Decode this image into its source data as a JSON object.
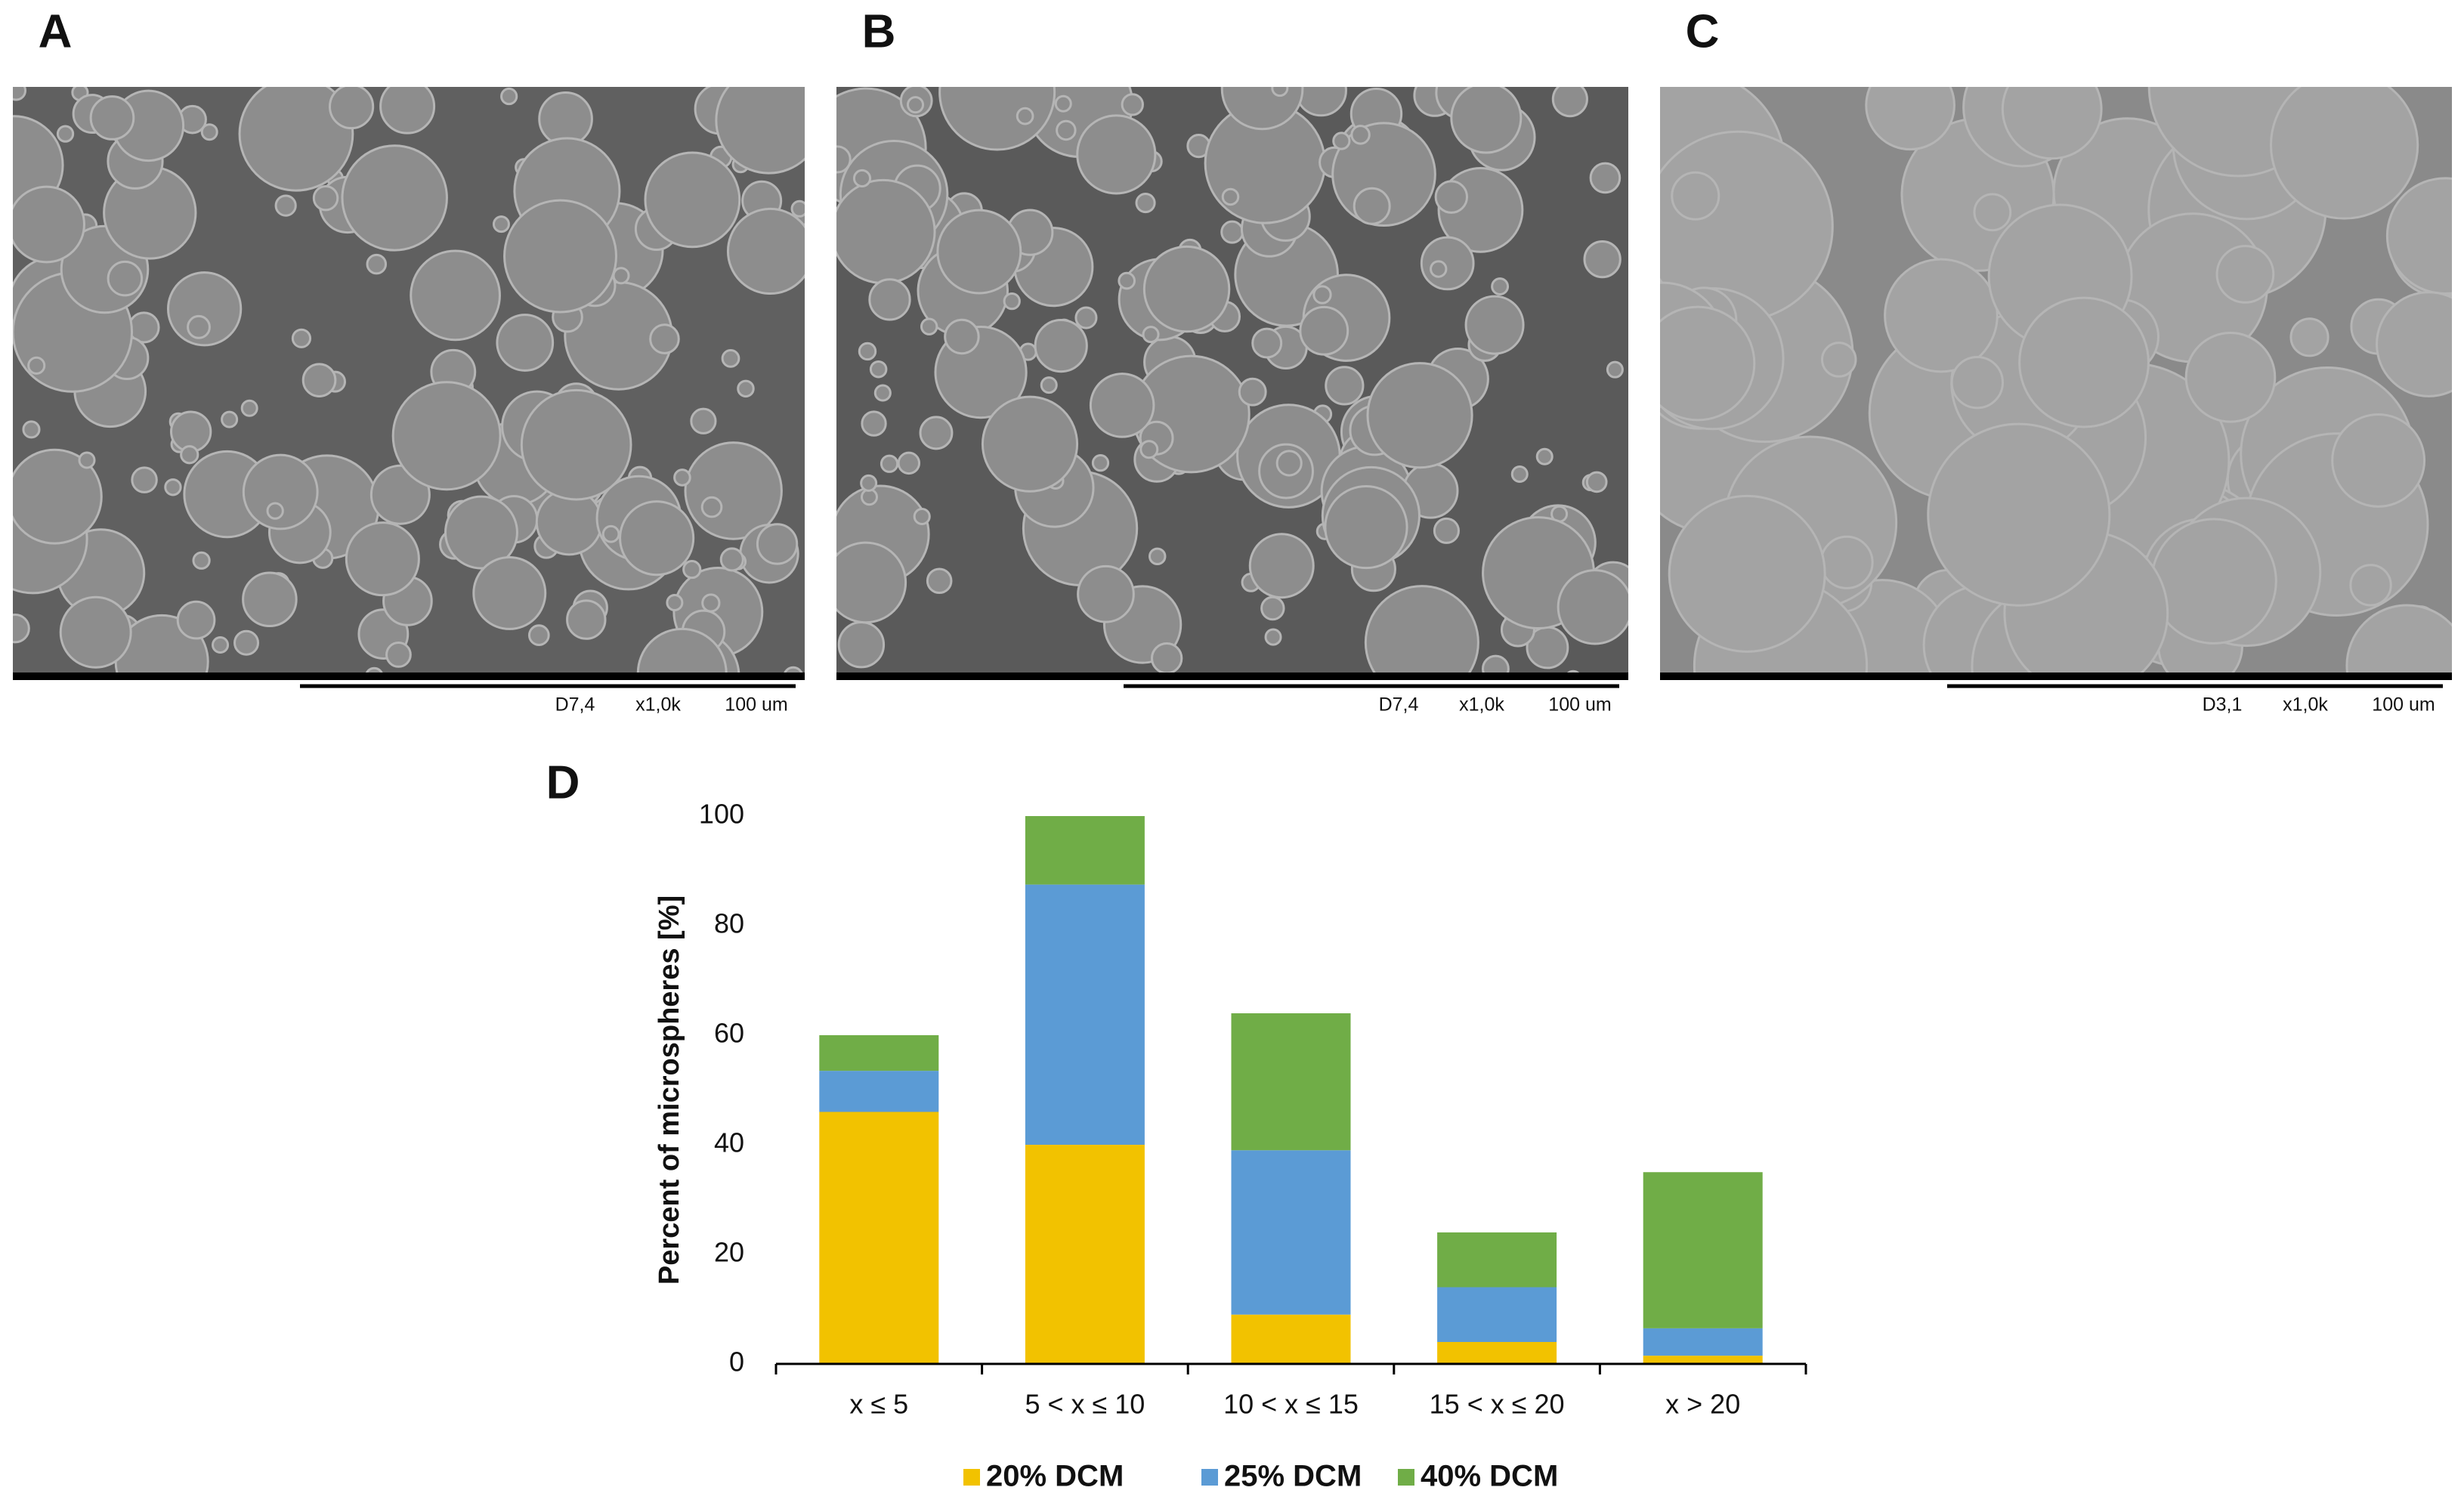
{
  "panels": [
    {
      "label": "A",
      "scale_info": [
        "D7,4",
        "x1,0k",
        "100 um"
      ]
    },
    {
      "label": "B",
      "scale_info": [
        "D7,4",
        "x1,0k",
        "100 um"
      ]
    },
    {
      "label": "C",
      "scale_info": [
        "D3,1",
        "x1,0k",
        "100 um"
      ]
    }
  ],
  "chart_data": {
    "type": "stacked-bar",
    "panel_label": "D",
    "y_label": "Percent of microspheres [%]",
    "categories": [
      "x ≤ 5",
      "5 < x ≤ 10",
      "10 < x ≤ 15",
      "15 < x ≤ 20",
      "x > 20"
    ],
    "series": [
      {
        "name": "20% DCM",
        "color": "#f2c200",
        "values": [
          46,
          40,
          9,
          4,
          1.5
        ]
      },
      {
        "name": "25% DCM",
        "color": "#5b9bd5",
        "values": [
          7.5,
          47.5,
          30,
          10,
          5
        ]
      },
      {
        "name": "40% DCM",
        "color": "#70ad47",
        "values": [
          6.5,
          12.5,
          25,
          10,
          28.5
        ]
      }
    ],
    "ylim": [
      0,
      100
    ],
    "yticks": [
      0,
      20,
      40,
      60,
      80,
      100
    ],
    "grid": false,
    "legend": "bottom"
  }
}
